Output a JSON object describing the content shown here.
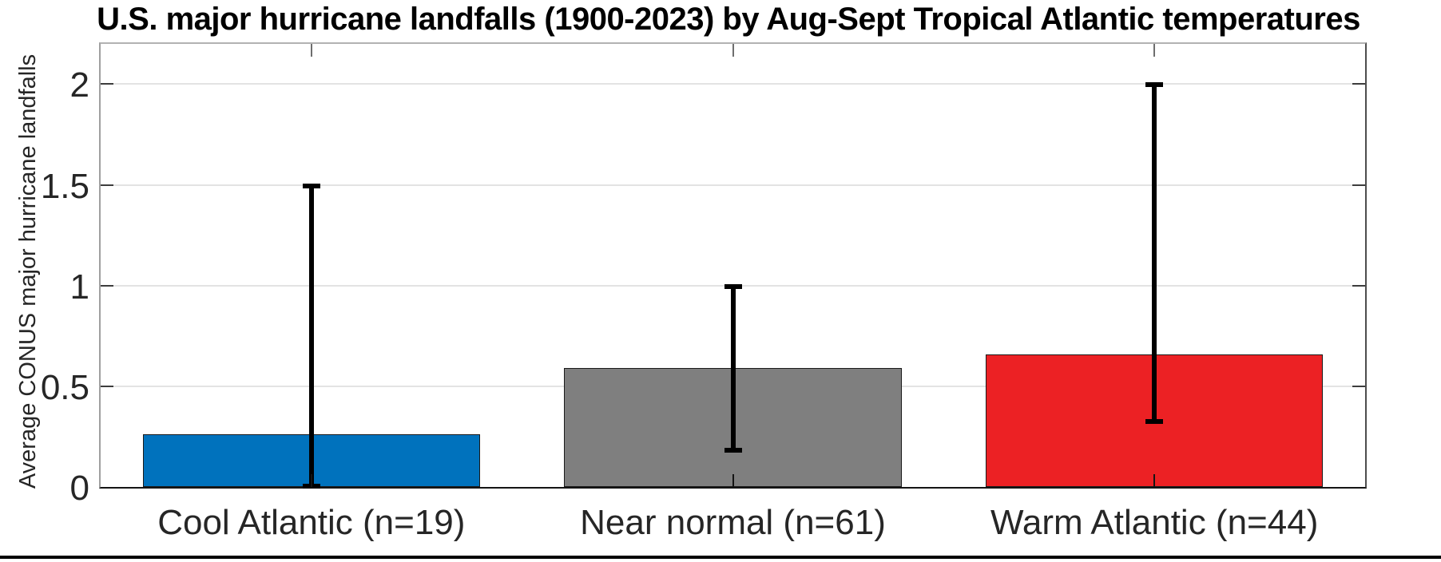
{
  "chart_data": {
    "type": "bar",
    "title": "U.S. major hurricane landfalls (1900-2023) by Aug-Sept Tropical Atlantic temperatures",
    "ylabel": "Average CONUS major hurricane landfalls",
    "xlabel": "",
    "categories": [
      "Cool Atlantic (n=19)",
      "Near normal (n=61)",
      "Warm Atlantic (n=44)"
    ],
    "values": [
      0.26,
      0.59,
      0.66
    ],
    "error_bars": [
      {
        "low": 0.0,
        "high": 1.5
      },
      {
        "low": 0.18,
        "high": 1.0
      },
      {
        "low": 0.32,
        "high": 2.0
      }
    ],
    "bar_colors": [
      "#0072BD",
      "#7F7F7F",
      "#EC2124"
    ],
    "error_color": "#000000",
    "yticks": [
      0,
      0.5,
      1,
      1.5,
      2
    ],
    "ytick_labels": [
      "0",
      "0.5",
      "1",
      "1.5",
      "2"
    ],
    "ylim": [
      0,
      2.2
    ],
    "grid": true,
    "legend_position": "none"
  }
}
